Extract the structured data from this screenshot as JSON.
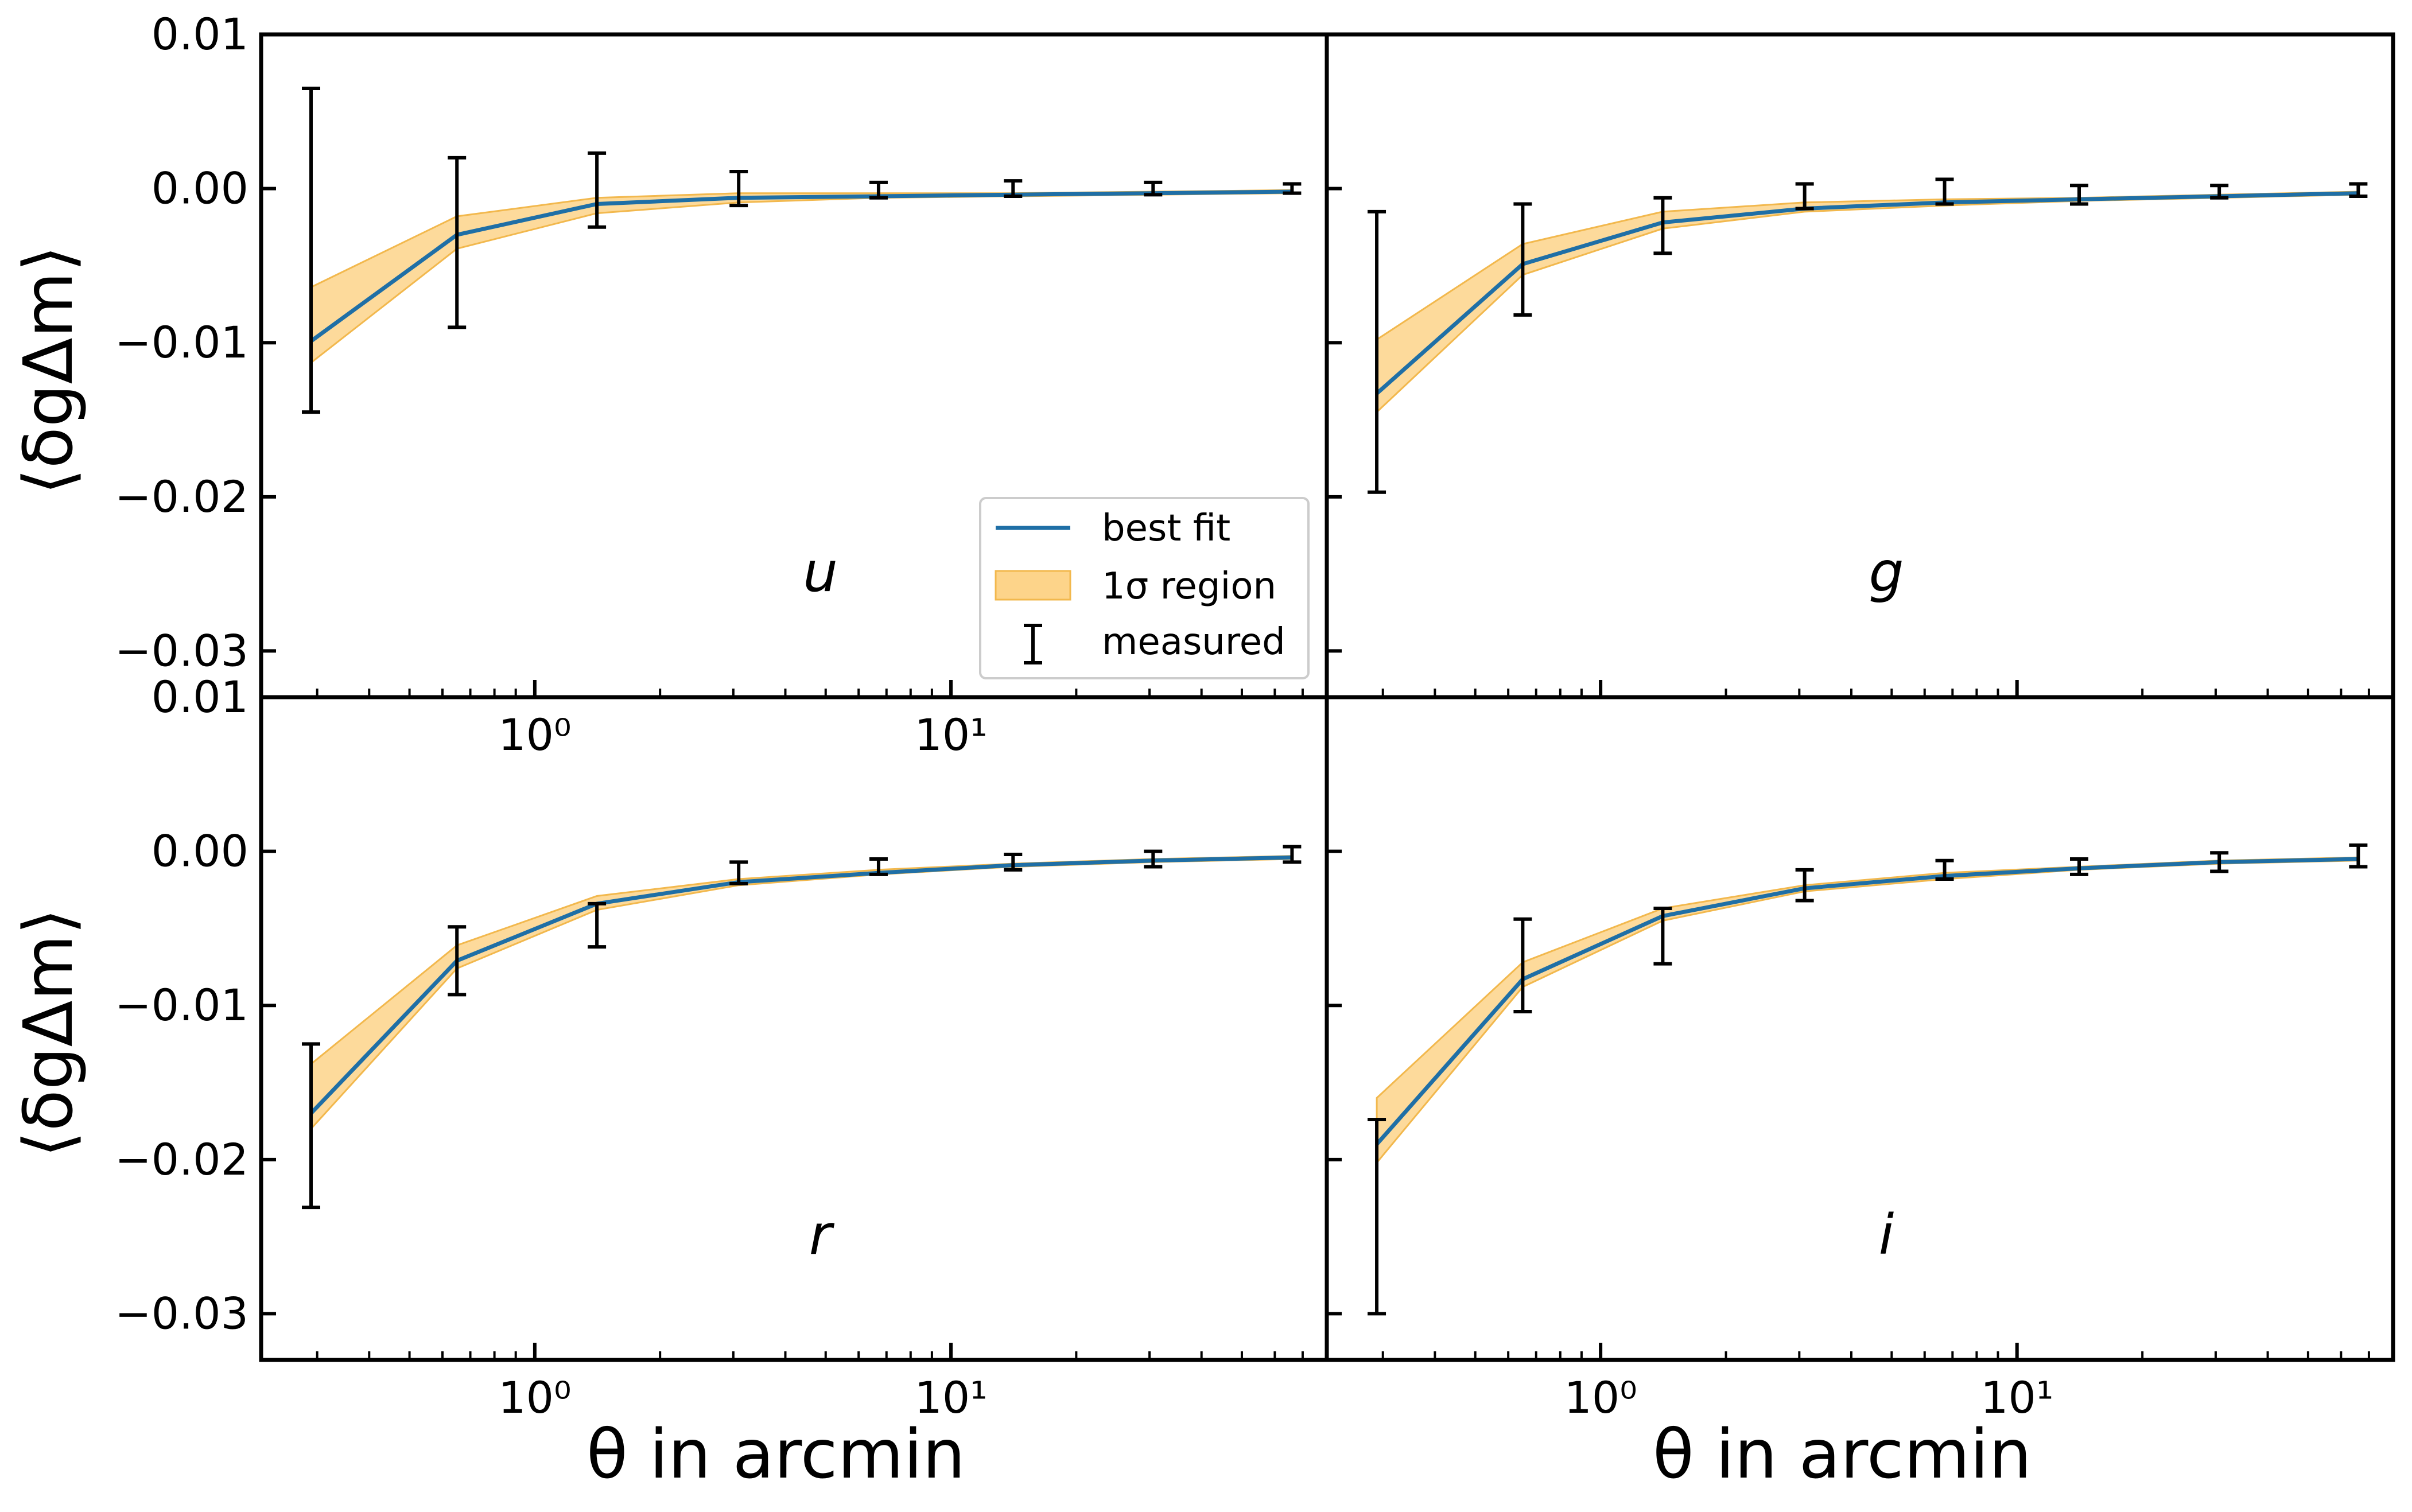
{
  "figure": {
    "ylabel_text": "⟨δgΔm⟩",
    "xlabel": "θ in arcmin",
    "colors": {
      "fit": "#1f6fa6",
      "band_fill": "#fdd48a",
      "band_edge": "#f2b84d",
      "errorbar": "#000000"
    }
  },
  "legend": {
    "entries": [
      {
        "label": "best fit",
        "type": "line"
      },
      {
        "label": "1σ region",
        "type": "patch"
      },
      {
        "label": "measured",
        "type": "errorbar"
      }
    ],
    "location": "lower right of top-left panel"
  },
  "chart_data": [
    {
      "type": "line",
      "panel": "u",
      "label": "u",
      "xscale": "log",
      "xlim": [
        0.22,
        80
      ],
      "ylim": [
        -0.033,
        0.01
      ],
      "x_ticks": [
        {
          "value": 1,
          "label": "10⁰"
        },
        {
          "value": 10,
          "label": "10¹"
        }
      ],
      "y_ticks": [
        {
          "value": 0.01,
          "label": "0.01"
        },
        {
          "value": 0.0,
          "label": "0.00"
        },
        {
          "value": -0.01,
          "label": "−0.01"
        },
        {
          "value": -0.02,
          "label": "−0.02"
        },
        {
          "value": -0.03,
          "label": "−0.03"
        }
      ],
      "x": [
        0.29,
        0.65,
        1.41,
        3.09,
        6.7,
        14.1,
        30.6,
        66
      ],
      "best_fit": [
        -0.0099,
        -0.003,
        -0.001,
        -0.0006,
        -0.0005,
        -0.0004,
        -0.0003,
        -0.0002
      ],
      "band_lower": [
        -0.0113,
        -0.0039,
        -0.0016,
        -0.0009,
        -0.0006,
        -0.0005,
        -0.0004,
        -0.0003
      ],
      "band_upper": [
        -0.0064,
        -0.0018,
        -0.0006,
        -0.0003,
        -0.0003,
        -0.0003,
        -0.0002,
        -0.0001
      ],
      "measured": [
        -0.004,
        -0.0035,
        -0.0001,
        0.0,
        -0.0001,
        0.0,
        0.0,
        0.0
      ],
      "err": [
        0.0105,
        0.0055,
        0.0024,
        0.0011,
        0.0005,
        0.0005,
        0.0004,
        0.0003
      ]
    },
    {
      "type": "line",
      "panel": "g",
      "label": "g",
      "xscale": "log",
      "xlim": [
        0.22,
        80
      ],
      "ylim": [
        -0.033,
        0.01
      ],
      "x_ticks": [
        {
          "value": 1,
          "label": ""
        },
        {
          "value": 10,
          "label": ""
        }
      ],
      "y_ticks": [],
      "x": [
        0.29,
        0.65,
        1.41,
        3.09,
        6.7,
        14.1,
        30.6,
        66
      ],
      "best_fit": [
        -0.0133,
        -0.0049,
        -0.0022,
        -0.0013,
        -0.0009,
        -0.0007,
        -0.0005,
        -0.0003
      ],
      "band_lower": [
        -0.0145,
        -0.0056,
        -0.0026,
        -0.0015,
        -0.0011,
        -0.0008,
        -0.0006,
        -0.0004
      ],
      "band_upper": [
        -0.0098,
        -0.0036,
        -0.0015,
        -0.0009,
        -0.0007,
        -0.0006,
        -0.0004,
        -0.0002
      ],
      "measured": [
        -0.0106,
        -0.0046,
        -0.0024,
        -0.0005,
        -0.0002,
        -0.0004,
        -0.0002,
        -0.0001
      ],
      "err": [
        0.0091,
        0.0036,
        0.0018,
        0.0008,
        0.0008,
        0.0006,
        0.0004,
        0.0004
      ]
    },
    {
      "type": "line",
      "panel": "r",
      "label": "r",
      "xscale": "log",
      "xlim": [
        0.22,
        80
      ],
      "ylim": [
        -0.033,
        0.01
      ],
      "x_ticks": [
        {
          "value": 1,
          "label": "10⁰"
        },
        {
          "value": 10,
          "label": "10¹"
        }
      ],
      "y_ticks": [
        {
          "value": 0.01,
          "label": "0.01"
        },
        {
          "value": 0.0,
          "label": "0.00"
        },
        {
          "value": -0.01,
          "label": "−0.01"
        },
        {
          "value": -0.02,
          "label": "−0.02"
        },
        {
          "value": -0.03,
          "label": "−0.03"
        }
      ],
      "x": [
        0.29,
        0.65,
        1.41,
        3.09,
        6.7,
        14.1,
        30.6,
        66
      ],
      "best_fit": [
        -0.017,
        -0.0071,
        -0.0034,
        -0.002,
        -0.0014,
        -0.0009,
        -0.0006,
        -0.0004
      ],
      "band_lower": [
        -0.018,
        -0.0076,
        -0.0038,
        -0.0022,
        -0.0015,
        -0.001,
        -0.0007,
        -0.0005
      ],
      "band_upper": [
        -0.0138,
        -0.0061,
        -0.0029,
        -0.0018,
        -0.0012,
        -0.0008,
        -0.0005,
        -0.0003
      ],
      "measured": [
        -0.0178,
        -0.0071,
        -0.0048,
        -0.0014,
        -0.001,
        -0.0007,
        -0.0005,
        -0.0002
      ],
      "err": [
        0.0053,
        0.0022,
        0.0014,
        0.0007,
        0.0005,
        0.0005,
        0.0005,
        0.0005
      ]
    },
    {
      "type": "line",
      "panel": "i",
      "label": "i",
      "xscale": "log",
      "xlim": [
        0.22,
        80
      ],
      "ylim": [
        -0.033,
        0.01
      ],
      "x_ticks": [
        {
          "value": 1,
          "label": "10⁰"
        },
        {
          "value": 10,
          "label": "10¹"
        }
      ],
      "y_ticks": [],
      "x": [
        0.29,
        0.65,
        1.41,
        3.09,
        6.7,
        14.1,
        30.6,
        66
      ],
      "best_fit": [
        -0.019,
        -0.0083,
        -0.0042,
        -0.0024,
        -0.0016,
        -0.0011,
        -0.0007,
        -0.0005
      ],
      "band_lower": [
        -0.0202,
        -0.0088,
        -0.0045,
        -0.0026,
        -0.0018,
        -0.0012,
        -0.0008,
        -0.0006
      ],
      "band_upper": [
        -0.016,
        -0.0072,
        -0.0037,
        -0.0022,
        -0.0014,
        -0.001,
        -0.0006,
        -0.0004
      ],
      "measured": [
        -0.0237,
        -0.0074,
        -0.0055,
        -0.0022,
        -0.0012,
        -0.001,
        -0.0007,
        -0.0003
      ],
      "err": [
        0.0063,
        0.003,
        0.0018,
        0.001,
        0.0006,
        0.0005,
        0.0006,
        0.0007
      ]
    }
  ]
}
